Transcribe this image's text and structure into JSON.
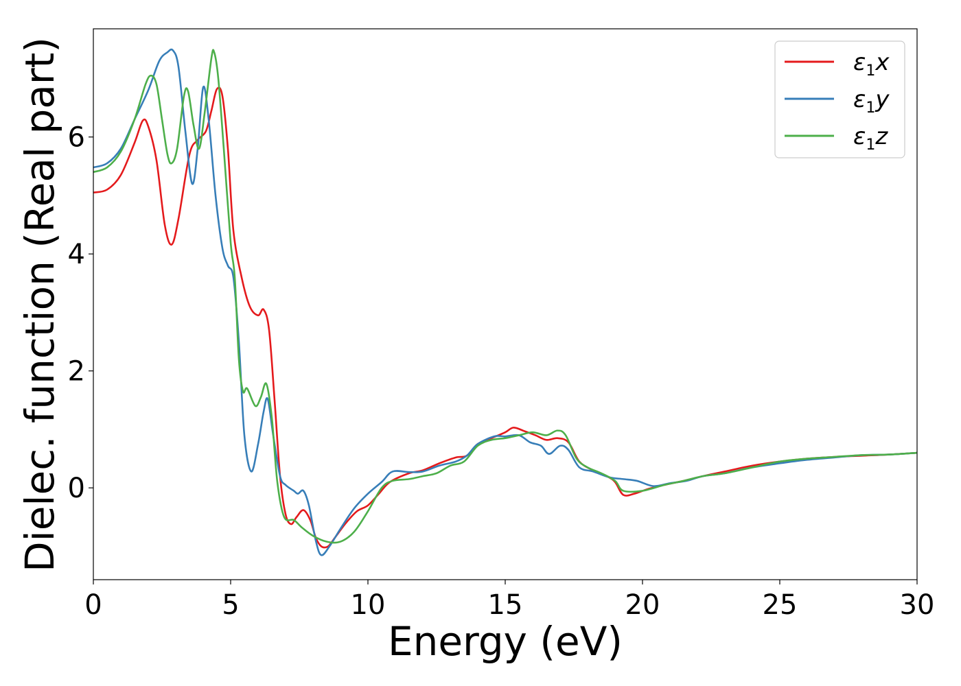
{
  "chart_data": {
    "type": "line",
    "xlabel": "Energy (eV)",
    "ylabel": "Dielec. function (Real part)",
    "xlim": [
      0,
      30
    ],
    "ylim": [
      -1.57,
      7.85
    ],
    "xticks": [
      0,
      5,
      10,
      15,
      20,
      25,
      30
    ],
    "yticks": [
      0,
      2,
      4,
      6
    ],
    "grid": false,
    "legend_position": "top-right",
    "series": [
      {
        "name": "ε1x",
        "symbol": "ε",
        "subscript": "1",
        "suffix": "x",
        "color": "#e41a1c",
        "points": [
          [
            0,
            5.05
          ],
          [
            0.5,
            5.1
          ],
          [
            1.0,
            5.35
          ],
          [
            1.5,
            5.9
          ],
          [
            1.8,
            6.28
          ],
          [
            2.0,
            6.18
          ],
          [
            2.3,
            5.6
          ],
          [
            2.6,
            4.5
          ],
          [
            2.85,
            4.16
          ],
          [
            3.1,
            4.6
          ],
          [
            3.5,
            5.7
          ],
          [
            3.8,
            5.95
          ],
          [
            4.1,
            6.1
          ],
          [
            4.3,
            6.45
          ],
          [
            4.5,
            6.82
          ],
          [
            4.7,
            6.7
          ],
          [
            4.9,
            5.8
          ],
          [
            5.1,
            4.4
          ],
          [
            5.4,
            3.6
          ],
          [
            5.7,
            3.1
          ],
          [
            6.0,
            2.95
          ],
          [
            6.2,
            3.05
          ],
          [
            6.4,
            2.7
          ],
          [
            6.6,
            1.5
          ],
          [
            6.8,
            0.2
          ],
          [
            7.0,
            -0.45
          ],
          [
            7.2,
            -0.62
          ],
          [
            7.4,
            -0.5
          ],
          [
            7.65,
            -0.38
          ],
          [
            7.9,
            -0.55
          ],
          [
            8.1,
            -0.85
          ],
          [
            8.3,
            -1.0
          ],
          [
            8.55,
            -1.0
          ],
          [
            8.8,
            -0.85
          ],
          [
            9.2,
            -0.6
          ],
          [
            9.6,
            -0.4
          ],
          [
            10.0,
            -0.3
          ],
          [
            10.4,
            -0.1
          ],
          [
            10.8,
            0.1
          ],
          [
            11.5,
            0.25
          ],
          [
            12.0,
            0.3
          ],
          [
            12.6,
            0.42
          ],
          [
            13.2,
            0.52
          ],
          [
            13.6,
            0.55
          ],
          [
            14.0,
            0.75
          ],
          [
            14.5,
            0.85
          ],
          [
            15.0,
            0.95
          ],
          [
            15.3,
            1.03
          ],
          [
            15.7,
            0.97
          ],
          [
            16.1,
            0.9
          ],
          [
            16.5,
            0.82
          ],
          [
            16.9,
            0.85
          ],
          [
            17.3,
            0.78
          ],
          [
            17.7,
            0.45
          ],
          [
            18.2,
            0.3
          ],
          [
            18.7,
            0.2
          ],
          [
            19.0,
            0.1
          ],
          [
            19.3,
            -0.12
          ],
          [
            19.7,
            -0.1
          ],
          [
            20.2,
            -0.02
          ],
          [
            20.8,
            0.05
          ],
          [
            21.5,
            0.12
          ],
          [
            22.2,
            0.2
          ],
          [
            23,
            0.28
          ],
          [
            24,
            0.38
          ],
          [
            25,
            0.45
          ],
          [
            26,
            0.5
          ],
          [
            27,
            0.53
          ],
          [
            28,
            0.55
          ],
          [
            29,
            0.57
          ],
          [
            30,
            0.6
          ]
        ]
      },
      {
        "name": "ε1y",
        "symbol": "ε",
        "subscript": "1",
        "suffix": "y",
        "color": "#377eb8",
        "points": [
          [
            0,
            5.48
          ],
          [
            0.5,
            5.55
          ],
          [
            1.0,
            5.8
          ],
          [
            1.5,
            6.3
          ],
          [
            2.0,
            6.8
          ],
          [
            2.4,
            7.3
          ],
          [
            2.7,
            7.45
          ],
          [
            2.9,
            7.48
          ],
          [
            3.1,
            7.2
          ],
          [
            3.35,
            6.1
          ],
          [
            3.6,
            5.2
          ],
          [
            3.8,
            5.8
          ],
          [
            4.0,
            6.85
          ],
          [
            4.2,
            6.3
          ],
          [
            4.45,
            5.0
          ],
          [
            4.7,
            4.1
          ],
          [
            4.9,
            3.8
          ],
          [
            5.1,
            3.6
          ],
          [
            5.3,
            2.5
          ],
          [
            5.5,
            0.9
          ],
          [
            5.75,
            0.28
          ],
          [
            6.0,
            0.75
          ],
          [
            6.2,
            1.3
          ],
          [
            6.35,
            1.52
          ],
          [
            6.55,
            0.9
          ],
          [
            6.8,
            0.2
          ],
          [
            7.0,
            0.05
          ],
          [
            7.3,
            -0.05
          ],
          [
            7.45,
            -0.1
          ],
          [
            7.65,
            -0.05
          ],
          [
            7.85,
            -0.3
          ],
          [
            8.1,
            -0.9
          ],
          [
            8.3,
            -1.15
          ],
          [
            8.6,
            -1.0
          ],
          [
            9.0,
            -0.7
          ],
          [
            9.5,
            -0.35
          ],
          [
            10.0,
            -0.1
          ],
          [
            10.5,
            0.1
          ],
          [
            10.9,
            0.28
          ],
          [
            11.5,
            0.27
          ],
          [
            12.0,
            0.28
          ],
          [
            12.6,
            0.38
          ],
          [
            13.2,
            0.45
          ],
          [
            13.6,
            0.55
          ],
          [
            14.0,
            0.75
          ],
          [
            14.6,
            0.88
          ],
          [
            15.0,
            0.88
          ],
          [
            15.5,
            0.9
          ],
          [
            15.9,
            0.78
          ],
          [
            16.3,
            0.72
          ],
          [
            16.6,
            0.58
          ],
          [
            17.0,
            0.72
          ],
          [
            17.3,
            0.65
          ],
          [
            17.7,
            0.35
          ],
          [
            18.2,
            0.28
          ],
          [
            18.8,
            0.18
          ],
          [
            19.3,
            0.15
          ],
          [
            19.8,
            0.12
          ],
          [
            20.4,
            0.03
          ],
          [
            21,
            0.08
          ],
          [
            21.6,
            0.12
          ],
          [
            22.2,
            0.2
          ],
          [
            23,
            0.25
          ],
          [
            24,
            0.35
          ],
          [
            25,
            0.42
          ],
          [
            26,
            0.48
          ],
          [
            27,
            0.52
          ],
          [
            28,
            0.56
          ],
          [
            29,
            0.57
          ],
          [
            30,
            0.6
          ]
        ]
      },
      {
        "name": "ε1z",
        "symbol": "ε",
        "subscript": "1",
        "suffix": "z",
        "color": "#4daf4a",
        "points": [
          [
            0,
            5.4
          ],
          [
            0.5,
            5.48
          ],
          [
            1.0,
            5.75
          ],
          [
            1.5,
            6.3
          ],
          [
            1.9,
            6.9
          ],
          [
            2.1,
            7.05
          ],
          [
            2.3,
            6.9
          ],
          [
            2.5,
            6.3
          ],
          [
            2.7,
            5.7
          ],
          [
            2.85,
            5.55
          ],
          [
            3.05,
            5.8
          ],
          [
            3.3,
            6.7
          ],
          [
            3.45,
            6.78
          ],
          [
            3.65,
            6.2
          ],
          [
            3.85,
            5.8
          ],
          [
            4.05,
            6.4
          ],
          [
            4.3,
            7.35
          ],
          [
            4.4,
            7.45
          ],
          [
            4.55,
            7.0
          ],
          [
            4.75,
            5.8
          ],
          [
            5.0,
            4.2
          ],
          [
            5.15,
            3.6
          ],
          [
            5.3,
            2.2
          ],
          [
            5.45,
            1.65
          ],
          [
            5.6,
            1.7
          ],
          [
            5.9,
            1.4
          ],
          [
            6.1,
            1.55
          ],
          [
            6.3,
            1.78
          ],
          [
            6.5,
            1.2
          ],
          [
            6.7,
            0.1
          ],
          [
            6.95,
            -0.5
          ],
          [
            7.3,
            -0.55
          ],
          [
            7.6,
            -0.68
          ],
          [
            8.0,
            -0.82
          ],
          [
            8.5,
            -0.92
          ],
          [
            9.0,
            -0.92
          ],
          [
            9.5,
            -0.75
          ],
          [
            10.0,
            -0.4
          ],
          [
            10.5,
            0.0
          ],
          [
            10.9,
            0.12
          ],
          [
            11.5,
            0.15
          ],
          [
            12.0,
            0.2
          ],
          [
            12.5,
            0.25
          ],
          [
            13.0,
            0.38
          ],
          [
            13.5,
            0.45
          ],
          [
            14.0,
            0.72
          ],
          [
            14.5,
            0.82
          ],
          [
            15.0,
            0.85
          ],
          [
            15.5,
            0.9
          ],
          [
            16.0,
            0.95
          ],
          [
            16.5,
            0.9
          ],
          [
            16.9,
            0.98
          ],
          [
            17.2,
            0.9
          ],
          [
            17.6,
            0.5
          ],
          [
            18.0,
            0.35
          ],
          [
            18.5,
            0.25
          ],
          [
            19.0,
            0.12
          ],
          [
            19.3,
            -0.05
          ],
          [
            20.0,
            -0.05
          ],
          [
            20.8,
            0.05
          ],
          [
            21.5,
            0.12
          ],
          [
            22.2,
            0.2
          ],
          [
            23,
            0.25
          ],
          [
            24,
            0.35
          ],
          [
            25,
            0.45
          ],
          [
            26,
            0.5
          ],
          [
            27,
            0.53
          ],
          [
            28,
            0.56
          ],
          [
            29,
            0.57
          ],
          [
            30,
            0.6
          ]
        ]
      }
    ]
  }
}
